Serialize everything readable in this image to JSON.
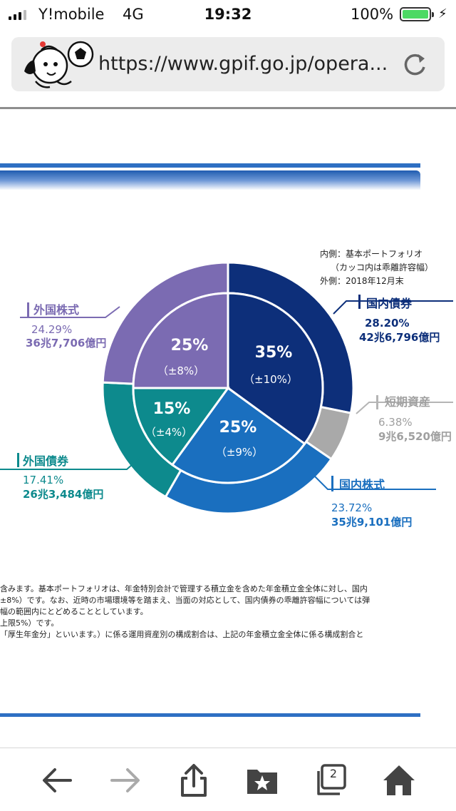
{
  "status_bar": {
    "carrier": "Y!mobile",
    "network": "4G",
    "time": "19:32",
    "battery": "100%",
    "battery_color": "#4cd964"
  },
  "browser": {
    "url": "https://www.gpif.go.jp/opera...",
    "icons": [
      "mascot-icon",
      "reload-icon"
    ]
  },
  "legend": {
    "line1": "内側：基本ポートフォリオ",
    "line2": "（カッコ内は乖離許容幅）",
    "line3": "外側：2018年12月末"
  },
  "chart_data": {
    "type": "pie",
    "inner": {
      "name": "基本ポートフォリオ",
      "slices": [
        {
          "label": "国内債券",
          "percent": "35%",
          "range": "（±10%）",
          "value": 35,
          "color": "#0d2f7a"
        },
        {
          "label": "国内株式",
          "percent": "25%",
          "range": "（±9%）",
          "value": 25,
          "color": "#1a6fbf"
        },
        {
          "label": "外国債券",
          "percent": "15%",
          "range": "（±4%）",
          "value": 15,
          "color": "#0d8a8d"
        },
        {
          "label": "外国株式",
          "percent": "25%",
          "range": "（±8%）",
          "value": 25,
          "color": "#7b6bb2"
        }
      ]
    },
    "outer": {
      "name": "2018年12月末",
      "slices": [
        {
          "label": "国内債券",
          "percent": "28.20%",
          "amount": "42兆6,796億円",
          "value": 28.2,
          "color": "#0d2f7a"
        },
        {
          "label": "短期資産",
          "percent": "6.38%",
          "amount": "9兆6,520億円",
          "value": 6.38,
          "color": "#a9a9a9"
        },
        {
          "label": "国内株式",
          "percent": "23.72%",
          "amount": "35兆9,101億円",
          "value": 23.72,
          "color": "#1a6fbf"
        },
        {
          "label": "外国債券",
          "percent": "17.41%",
          "amount": "26兆3,484億円",
          "value": 17.41,
          "color": "#0d8a8d"
        },
        {
          "label": "外国株式",
          "percent": "24.29%",
          "amount": "36兆7,706億円",
          "value": 24.29,
          "color": "#7b6bb2"
        }
      ]
    }
  },
  "notes": [
    "含みます。基本ポートフォリオは、年金特別会計で管理する積立金を含めた年金積立金全体に対し、国内",
    "±8%）です。なお、近時の市場環境等を踏まえ、当面の対応として、国内債券の乖離許容幅については弾",
    "幅の範囲内にとどめることとしています。",
    "上限5%）です。",
    "「厚生年金分」といいます。）に係る運用資産別の構成割合は、上記の年金積立金全体に係る構成割合と"
  ],
  "toolbar": {
    "tabs_count": "2",
    "icons": [
      "back-icon",
      "forward-icon",
      "share-icon",
      "bookmarks-icon",
      "tabs-icon",
      "home-icon"
    ]
  }
}
